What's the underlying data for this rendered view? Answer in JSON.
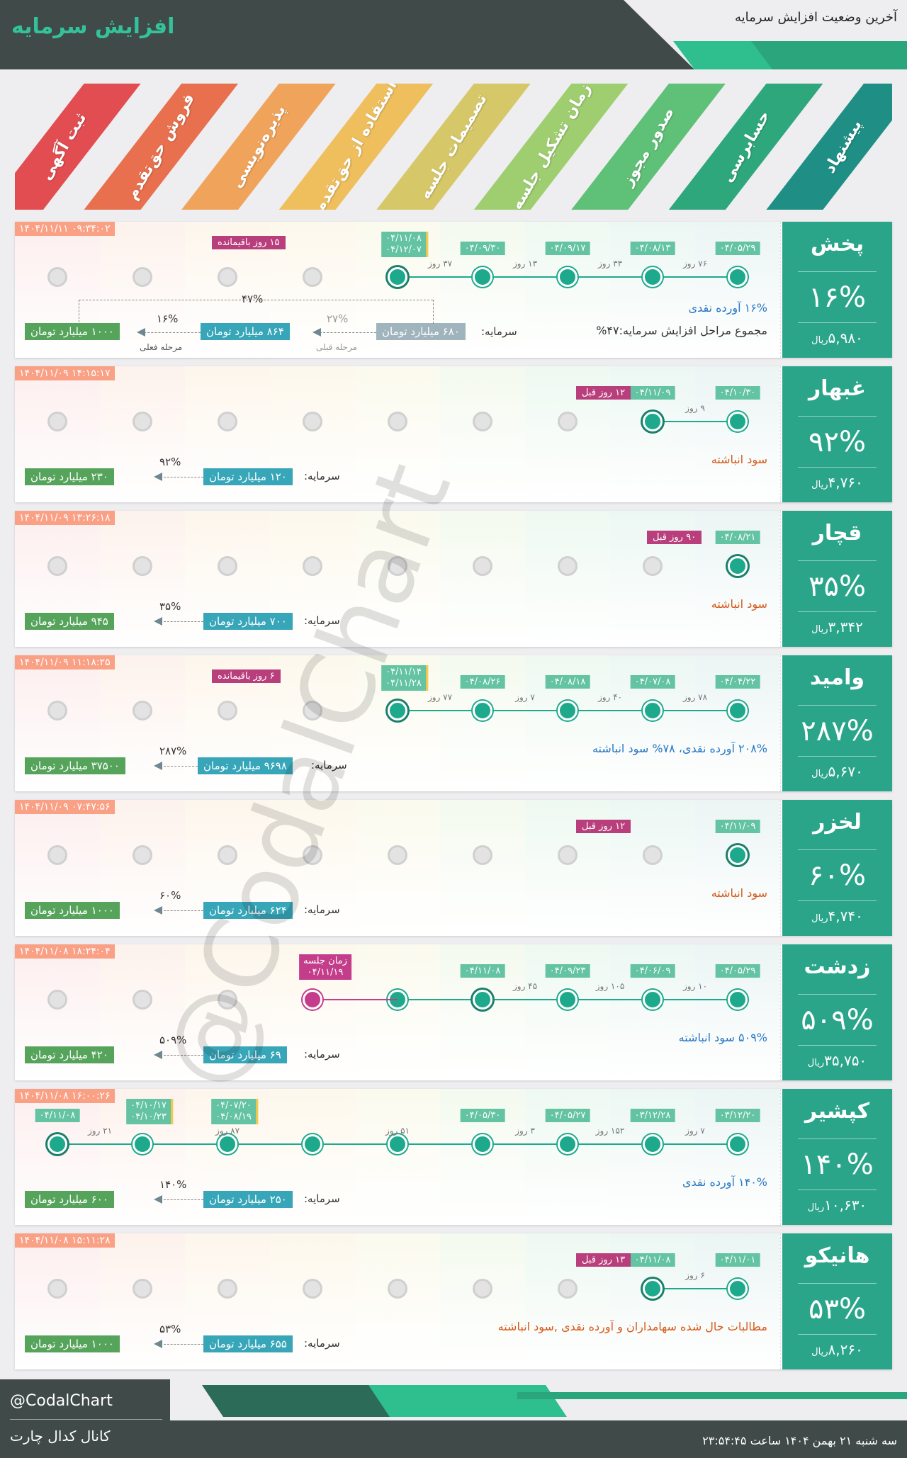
{
  "header": {
    "title": "افزایش سرمایه",
    "subtitle": "آخرین وضعیت افزایش سرمایه"
  },
  "phases": [
    "ثبت آگهی",
    "فروش حق‌تقدم",
    "پذیره‌نویسی",
    "استفاده از حق‌تقدم",
    "تصمیمات جلسه",
    "زمان تشکیل جلسه",
    "صدور مجوز",
    "حسابرسی",
    "پیشنهاد"
  ],
  "phase_colors": [
    "#e24d51",
    "#e8704e",
    "#f0a35b",
    "#efbf5e",
    "#d6c869",
    "#9fce71",
    "#5fc077",
    "#2fa77d",
    "#1f8f86"
  ],
  "cards": [
    {
      "name": "پخش",
      "percent": "۱۶%",
      "price": "۵,۹۸۰",
      "price_unit": "ریال",
      "timestamp": "۱۴۰۴/۱۱/۱۱ ۰۹:۳۴:۰۲",
      "dates": [
        "۰۴/۰۵/۲۹",
        "۰۴/۰۸/۱۳",
        "۰۴/۰۹/۱۷",
        "۰۴/۰۹/۳۰"
      ],
      "date_double": [
        "۰۴/۱۱/۰۸",
        "۰۴/۱۲/۰۷"
      ],
      "days": [
        "۷۶ روز",
        "۳۳ روز",
        "۱۳ روز",
        "۳۷ روز"
      ],
      "tag": "۱۵ روز باقیمانده",
      "note1": "۱۶% آورده نقدی",
      "note2": "مجموع مراحل افزایش سرمایه:۴۷%",
      "cap_label": "سرمایه:",
      "cap_from": "۶۸۰ میلیارد تومان",
      "cap_mid": "۸۶۴ میلیارد تومان",
      "cap_to": "۱۰۰۰ میلیارد تومان",
      "pct_a": "۲۷%",
      "pct_b": "۱۶%",
      "pct_total": "۴۷%",
      "lbl_prev": "مرحله قبلی",
      "lbl_cur": "مرحله فعلی"
    },
    {
      "name": "غبهار",
      "percent": "۹۲%",
      "price": "۴,۷۶۰",
      "price_unit": "ریال",
      "timestamp": "۱۴۰۴/۱۱/۰۹ ۱۴:۱۵:۱۷",
      "dates": [
        "۰۴/۱۰/۳۰",
        "۰۴/۱۱/۰۹"
      ],
      "days": [
        "۹ روز"
      ],
      "tag": "۱۲ روز قبل",
      "note1": "سود انباشته",
      "cap_label": "سرمایه:",
      "cap_from": "۱۲۰ میلیارد تومان",
      "cap_to": "۲۳۰ میلیارد تومان",
      "pct_a": "۹۲%"
    },
    {
      "name": "قچار",
      "percent": "۳۵%",
      "price": "۳,۳۴۲",
      "price_unit": "ریال",
      "timestamp": "۱۴۰۴/۱۱/۰۹ ۱۳:۲۶:۱۸",
      "dates": [
        "۰۴/۰۸/۲۱"
      ],
      "tag": "۹۰ روز قبل",
      "note1": "سود انباشته",
      "cap_label": "سرمایه:",
      "cap_from": "۷۰۰ میلیارد تومان",
      "cap_to": "۹۴۵ میلیارد تومان",
      "pct_a": "۳۵%"
    },
    {
      "name": "وامید",
      "percent": "۲۸۷%",
      "price": "۵,۶۷۰",
      "price_unit": "ریال",
      "timestamp": "۱۴۰۴/۱۱/۰۹ ۱۱:۱۸:۲۵",
      "dates": [
        "۰۴/۰۴/۲۲",
        "۰۴/۰۷/۰۸",
        "۰۴/۰۸/۱۸",
        "۰۴/۰۸/۲۶"
      ],
      "date_double": [
        "۰۴/۱۱/۱۴",
        "۰۴/۱۱/۲۸"
      ],
      "days": [
        "۷۸ روز",
        "۴۰ روز",
        "۷ روز",
        "۷۷ روز"
      ],
      "tag": "۶ روز باقیمانده",
      "note1": "۲۰۸% آورده نقدی، ۷۸% سود انباشته",
      "cap_label": "سرمایه:",
      "cap_from": "۹۶۹۸ میلیارد تومان",
      "cap_to": "۳۷۵۰۰ میلیارد تومان",
      "pct_a": "۲۸۷%"
    },
    {
      "name": "لخزر",
      "percent": "۶۰%",
      "price": "۴,۷۴۰",
      "price_unit": "ریال",
      "timestamp": "۱۴۰۴/۱۱/۰۹ ۰۷:۴۷:۵۶",
      "dates": [
        "۰۴/۱۱/۰۹"
      ],
      "tag": "۱۲ روز قبل",
      "note1": "سود انباشته",
      "cap_label": "سرمایه:",
      "cap_from": "۶۲۴ میلیارد تومان",
      "cap_to": "۱۰۰۰ میلیارد تومان",
      "pct_a": "۶۰%"
    },
    {
      "name": "زدشت",
      "percent": "۵۰۹%",
      "price": "۳۵,۷۵۰",
      "price_unit": "ریال",
      "timestamp": "۱۴۰۴/۱۱/۰۸ ۱۸:۲۴:۰۴",
      "dates": [
        "۰۴/۰۵/۲۹",
        "۰۴/۰۶/۰۹",
        "۰۴/۰۹/۲۳",
        "۰۴/۱۱/۰۸"
      ],
      "days": [
        "۱۰ روز",
        "۱۰۵ روز",
        "۴۵ روز"
      ],
      "meeting_label": "زمان جلسه",
      "meeting_date": "۰۴/۱۱/۱۹",
      "note1": "۵۰۹% سود انباشته",
      "cap_label": "سرمایه:",
      "cap_from": "۶۹ میلیارد تومان",
      "cap_to": "۴۲۰ میلیارد تومان",
      "pct_a": "۵۰۹%"
    },
    {
      "name": "کپشیر",
      "percent": "۱۴۰%",
      "price": "۱۰,۶۳۰",
      "price_unit": "ریال",
      "timestamp": "۱۴۰۴/۱۱/۰۸ ۱۶:۰۰:۲۶",
      "dates": [
        "۰۳/۱۲/۲۰",
        "۰۳/۱۲/۲۸",
        "۰۴/۰۵/۲۷",
        "۰۴/۰۵/۳۰",
        "۰۴/۱۱/۰۸"
      ],
      "date_double_a": [
        "۰۴/۰۷/۲۰",
        "۰۴/۰۸/۱۹"
      ],
      "date_double_b": [
        "۰۴/۱۰/۱۷",
        "۰۴/۱۰/۲۳"
      ],
      "days": [
        "۷ روز",
        "۱۵۲ روز",
        "۳ روز",
        "۵۱ روز",
        "۸۷ روز",
        "۲۱ روز"
      ],
      "note1": "۱۴۰% آورده نقدی",
      "cap_label": "سرمایه:",
      "cap_from": "۲۵۰ میلیارد تومان",
      "cap_to": "۶۰۰ میلیارد تومان",
      "pct_a": "۱۴۰%"
    },
    {
      "name": "هانیکو",
      "percent": "۵۳%",
      "price": "۸,۲۶۰",
      "price_unit": "ریال",
      "timestamp": "۱۴۰۴/۱۱/۰۸ ۱۵:۱۱:۲۸",
      "dates": [
        "۰۴/۱۱/۰۱",
        "۰۴/۱۱/۰۸"
      ],
      "days": [
        "۶ روز"
      ],
      "tag": "۱۳ روز قبل",
      "note1": "مطالبات حال شده سهامداران و آورده نقدی ,سود انباشته",
      "cap_label": "سرمایه:",
      "cap_from": "۶۵۵ میلیارد تومان",
      "cap_to": "۱۰۰۰ میلیارد تومان",
      "pct_a": "۵۳%"
    }
  ],
  "watermark": "@CodalChart",
  "footer": {
    "handle": "@CodalChart",
    "channel": "کانال کدال چارت",
    "datetime": "سه شنبه ۲۱ بهمن ۱۴۰۴ ساعت ۲۳:۵۴:۴۵"
  }
}
